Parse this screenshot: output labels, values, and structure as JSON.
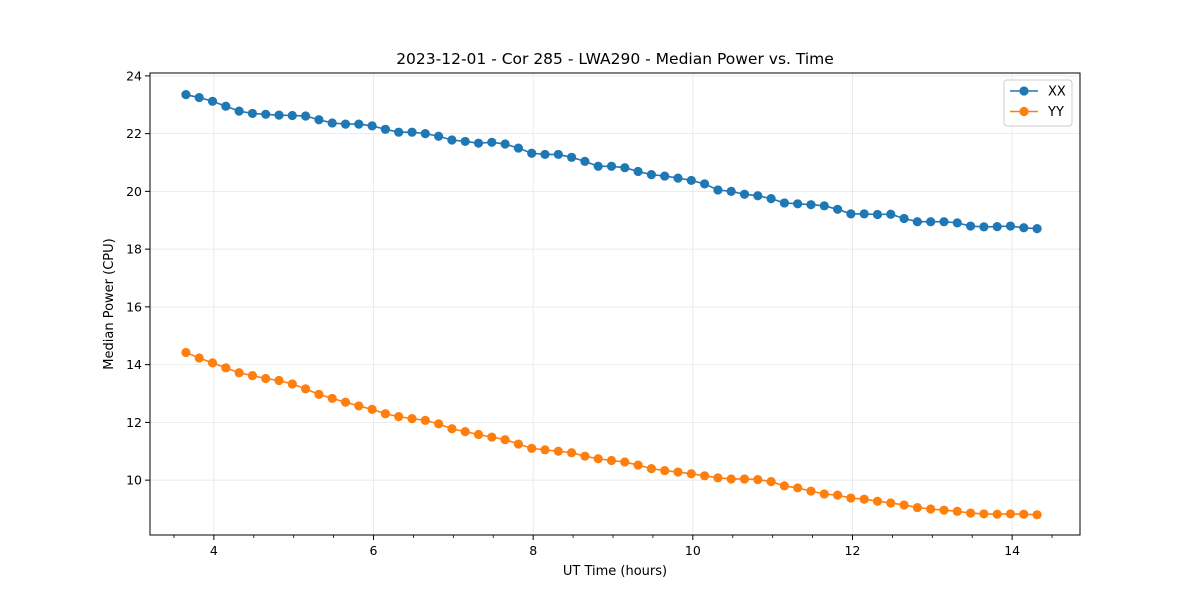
{
  "chart_data": {
    "type": "line",
    "title": "2023-12-01 - Cor 285 - LWA290 - Median Power vs. Time",
    "xlabel": "UT Time (hours)",
    "ylabel": "Median Power (CPU)",
    "xlim": [
      3.2,
      14.85
    ],
    "ylim": [
      8.1,
      24.1
    ],
    "xticks": [
      4,
      6,
      8,
      10,
      12,
      14
    ],
    "yticks": [
      10,
      12,
      14,
      16,
      18,
      20,
      22,
      24
    ],
    "grid": true,
    "legend_position": "top-right",
    "x_start": 3.65,
    "x_step": 0.1666,
    "series": [
      {
        "name": "XX",
        "color": "#1f77b4",
        "values": [
          23.35,
          23.25,
          23.12,
          22.95,
          22.78,
          22.7,
          22.67,
          22.64,
          22.63,
          22.61,
          22.48,
          22.37,
          22.33,
          22.33,
          22.27,
          22.15,
          22.05,
          22.05,
          22.0,
          21.91,
          21.78,
          21.73,
          21.67,
          21.7,
          21.64,
          21.5,
          21.32,
          21.28,
          21.28,
          21.18,
          21.04,
          20.87,
          20.87,
          20.82,
          20.69,
          20.58,
          20.53,
          20.46,
          20.38,
          20.26,
          20.05,
          20.0,
          19.9,
          19.85,
          19.75,
          19.6,
          19.57,
          19.54,
          19.5,
          19.38,
          19.22,
          19.22,
          19.2,
          19.21,
          19.06,
          18.95,
          18.95,
          18.95,
          18.91,
          18.8,
          18.77,
          18.78,
          18.8,
          18.74,
          18.71
        ]
      },
      {
        "name": "YY",
        "color": "#ff7f0e",
        "values": [
          14.42,
          14.23,
          14.06,
          13.89,
          13.72,
          13.62,
          13.52,
          13.45,
          13.33,
          13.16,
          12.97,
          12.83,
          12.7,
          12.57,
          12.45,
          12.3,
          12.2,
          12.13,
          12.07,
          11.95,
          11.78,
          11.68,
          11.58,
          11.49,
          11.4,
          11.25,
          11.1,
          11.05,
          11.0,
          10.95,
          10.83,
          10.74,
          10.68,
          10.63,
          10.52,
          10.4,
          10.33,
          10.28,
          10.22,
          10.15,
          10.08,
          10.04,
          10.04,
          10.02,
          9.95,
          9.8,
          9.73,
          9.62,
          9.52,
          9.48,
          9.38,
          9.34,
          9.27,
          9.21,
          9.14,
          9.05,
          9.0,
          8.96,
          8.92,
          8.86,
          8.83,
          8.82,
          8.83,
          8.82,
          8.8
        ]
      }
    ]
  }
}
